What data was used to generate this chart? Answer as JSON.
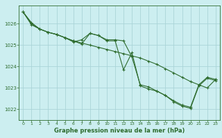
{
  "title": "Graphe pression niveau de la mer (hPa)",
  "background_color": "#cceef0",
  "grid_color": "#aad4d8",
  "line_color": "#2d6b2d",
  "xlim": [
    -0.5,
    23.5
  ],
  "ylim": [
    1021.5,
    1026.85
  ],
  "yticks": [
    1022,
    1023,
    1024,
    1025,
    1026
  ],
  "xticks": [
    0,
    1,
    2,
    3,
    4,
    5,
    6,
    7,
    8,
    9,
    10,
    11,
    12,
    13,
    14,
    15,
    16,
    17,
    18,
    19,
    20,
    21,
    22,
    23
  ],
  "series1_y": [
    1026.55,
    1026.05,
    1025.75,
    1025.6,
    1025.5,
    1025.35,
    1025.15,
    1025.25,
    1025.55,
    1025.45,
    1025.25,
    1025.25,
    1025.2,
    1024.45,
    1023.15,
    1023.05,
    1022.85,
    1022.65,
    1022.4,
    1022.2,
    1022.1,
    1023.15,
    1023.5,
    1023.4
  ],
  "series2_y": [
    1026.55,
    1026.0,
    1025.75,
    1025.6,
    1025.5,
    1025.35,
    1025.2,
    1025.05,
    1025.55,
    1025.45,
    1025.2,
    1025.2,
    1023.85,
    1024.65,
    1023.1,
    1022.95,
    1022.85,
    1022.65,
    1022.35,
    1022.15,
    1022.05,
    1023.1,
    1023.45,
    1023.35
  ],
  "series3_y": [
    1026.55,
    1025.95,
    1025.75,
    1025.6,
    1025.5,
    1025.35,
    1025.2,
    1025.1,
    1025.0,
    1024.9,
    1024.8,
    1024.7,
    1024.6,
    1024.5,
    1024.4,
    1024.25,
    1024.1,
    1023.9,
    1023.7,
    1023.5,
    1023.3,
    1023.15,
    1023.0,
    1023.4
  ],
  "ylabel_fontsize": 5,
  "xlabel_fontsize": 6,
  "title_fontsize": 6,
  "tick_fontsize": 4.5
}
